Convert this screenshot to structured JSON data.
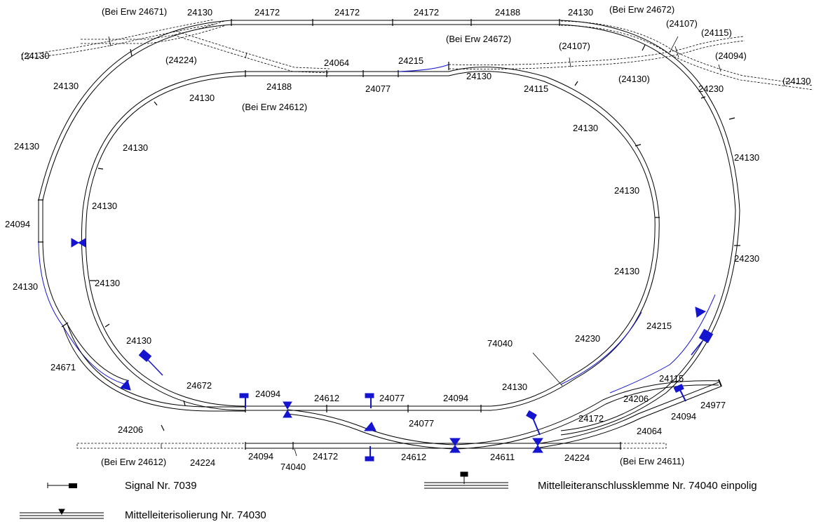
{
  "labels": [
    {
      "id": "l-bei-24671",
      "t": "(Bei Erw 24671)"
    },
    {
      "id": "l-top-24130a",
      "t": "24130"
    },
    {
      "id": "l-top-24172a",
      "t": "24172"
    },
    {
      "id": "l-top-24172b",
      "t": "24172"
    },
    {
      "id": "l-top-24172c",
      "t": "24172"
    },
    {
      "id": "l-top-24188",
      "t": "24188"
    },
    {
      "id": "l-top-24130b",
      "t": "24130"
    },
    {
      "id": "l-bei-24672-top",
      "t": "(Bei Erw 24672)"
    },
    {
      "id": "l-24107a",
      "t": "(24107)"
    },
    {
      "id": "l-24115a",
      "t": "(24115)"
    },
    {
      "id": "l-bei-24672-mid",
      "t": "(Bei Erw 24672)"
    },
    {
      "id": "l-24107b",
      "t": "(24107)"
    },
    {
      "id": "l-24094a",
      "t": "(24094)"
    },
    {
      "id": "l-24130-left",
      "t": "(24130"
    },
    {
      "id": "l-24224-paren",
      "t": "(24224)"
    },
    {
      "id": "l-24064-top",
      "t": "24064"
    },
    {
      "id": "l-24215-top",
      "t": "24215"
    },
    {
      "id": "l-24130-paren-right",
      "t": "(24130)"
    },
    {
      "id": "l-24130-far-right",
      "t": "(24130"
    },
    {
      "id": "l-24130-outer-nw",
      "t": "24130"
    },
    {
      "id": "l-24188-inner",
      "t": "24188"
    },
    {
      "id": "l-24077-inner",
      "t": "24077"
    },
    {
      "id": "l-24130-inner-ne",
      "t": "24130"
    },
    {
      "id": "l-24115-inner",
      "t": "24115"
    },
    {
      "id": "l-24230-outer-ne",
      "t": "24230"
    },
    {
      "id": "l-24130-inner-nw",
      "t": "24130"
    },
    {
      "id": "l-bei-24612-top",
      "t": "(Bei Erw 24612)"
    },
    {
      "id": "l-24130-inner-e1",
      "t": "24130"
    },
    {
      "id": "l-24130-outer-w1",
      "t": "24130"
    },
    {
      "id": "l-24130-inner-w1",
      "t": "24130"
    },
    {
      "id": "l-24130-outer-e1",
      "t": "24130"
    },
    {
      "id": "l-24130-inner-e2",
      "t": "24130"
    },
    {
      "id": "l-24130-inner-w2",
      "t": "24130"
    },
    {
      "id": "l-24094-left",
      "t": "24094"
    },
    {
      "id": "l-24230-outer-e2",
      "t": "24230"
    },
    {
      "id": "l-24130-inner-e3",
      "t": "24130"
    },
    {
      "id": "l-24130-outer-w2",
      "t": "24130"
    },
    {
      "id": "l-24130-inner-w3",
      "t": "24130"
    },
    {
      "id": "l-24215-right",
      "t": "24215"
    },
    {
      "id": "l-74040-right",
      "t": "74040"
    },
    {
      "id": "l-24230-inner-se",
      "t": "24230"
    },
    {
      "id": "l-24130-inner-sw",
      "t": "24130"
    },
    {
      "id": "l-24671",
      "t": "24671"
    },
    {
      "id": "l-24672",
      "t": "24672"
    },
    {
      "id": "l-24094-b1",
      "t": "24094"
    },
    {
      "id": "l-24612-b1",
      "t": "24612"
    },
    {
      "id": "l-24077-b1",
      "t": "24077"
    },
    {
      "id": "l-24094-b2",
      "t": "24094"
    },
    {
      "id": "l-24130-b",
      "t": "24130"
    },
    {
      "id": "l-24115-b",
      "t": "24115"
    },
    {
      "id": "l-24206-right",
      "t": "24206"
    },
    {
      "id": "l-24977",
      "t": "24977"
    },
    {
      "id": "l-24077-b2",
      "t": "24077"
    },
    {
      "id": "l-24172-b1",
      "t": "24172"
    },
    {
      "id": "l-24094-b3",
      "t": "24094"
    },
    {
      "id": "l-24206-left",
      "t": "24206"
    },
    {
      "id": "l-24064-b",
      "t": "24064"
    },
    {
      "id": "l-24224-b1",
      "t": "24224"
    },
    {
      "id": "l-24094-b4",
      "t": "24094"
    },
    {
      "id": "l-74040-b",
      "t": "74040"
    },
    {
      "id": "l-24172-b2",
      "t": "24172"
    },
    {
      "id": "l-24612-b2",
      "t": "24612"
    },
    {
      "id": "l-24611",
      "t": "24611"
    },
    {
      "id": "l-24224-b2",
      "t": "24224"
    },
    {
      "id": "l-bei-24612-bot",
      "t": "(Bei Erw 24612)"
    },
    {
      "id": "l-bei-24611",
      "t": "(Bei Erw 24611)"
    }
  ],
  "legend": {
    "signal": "Signal Nr. 7039",
    "isolation": "Mittelleiterisolierung Nr. 74030",
    "connector": "Mittelleiteranschlussklemme Nr. 74040 einpolig"
  },
  "colors": {
    "track": "#000000",
    "blue": "#1515d0"
  }
}
